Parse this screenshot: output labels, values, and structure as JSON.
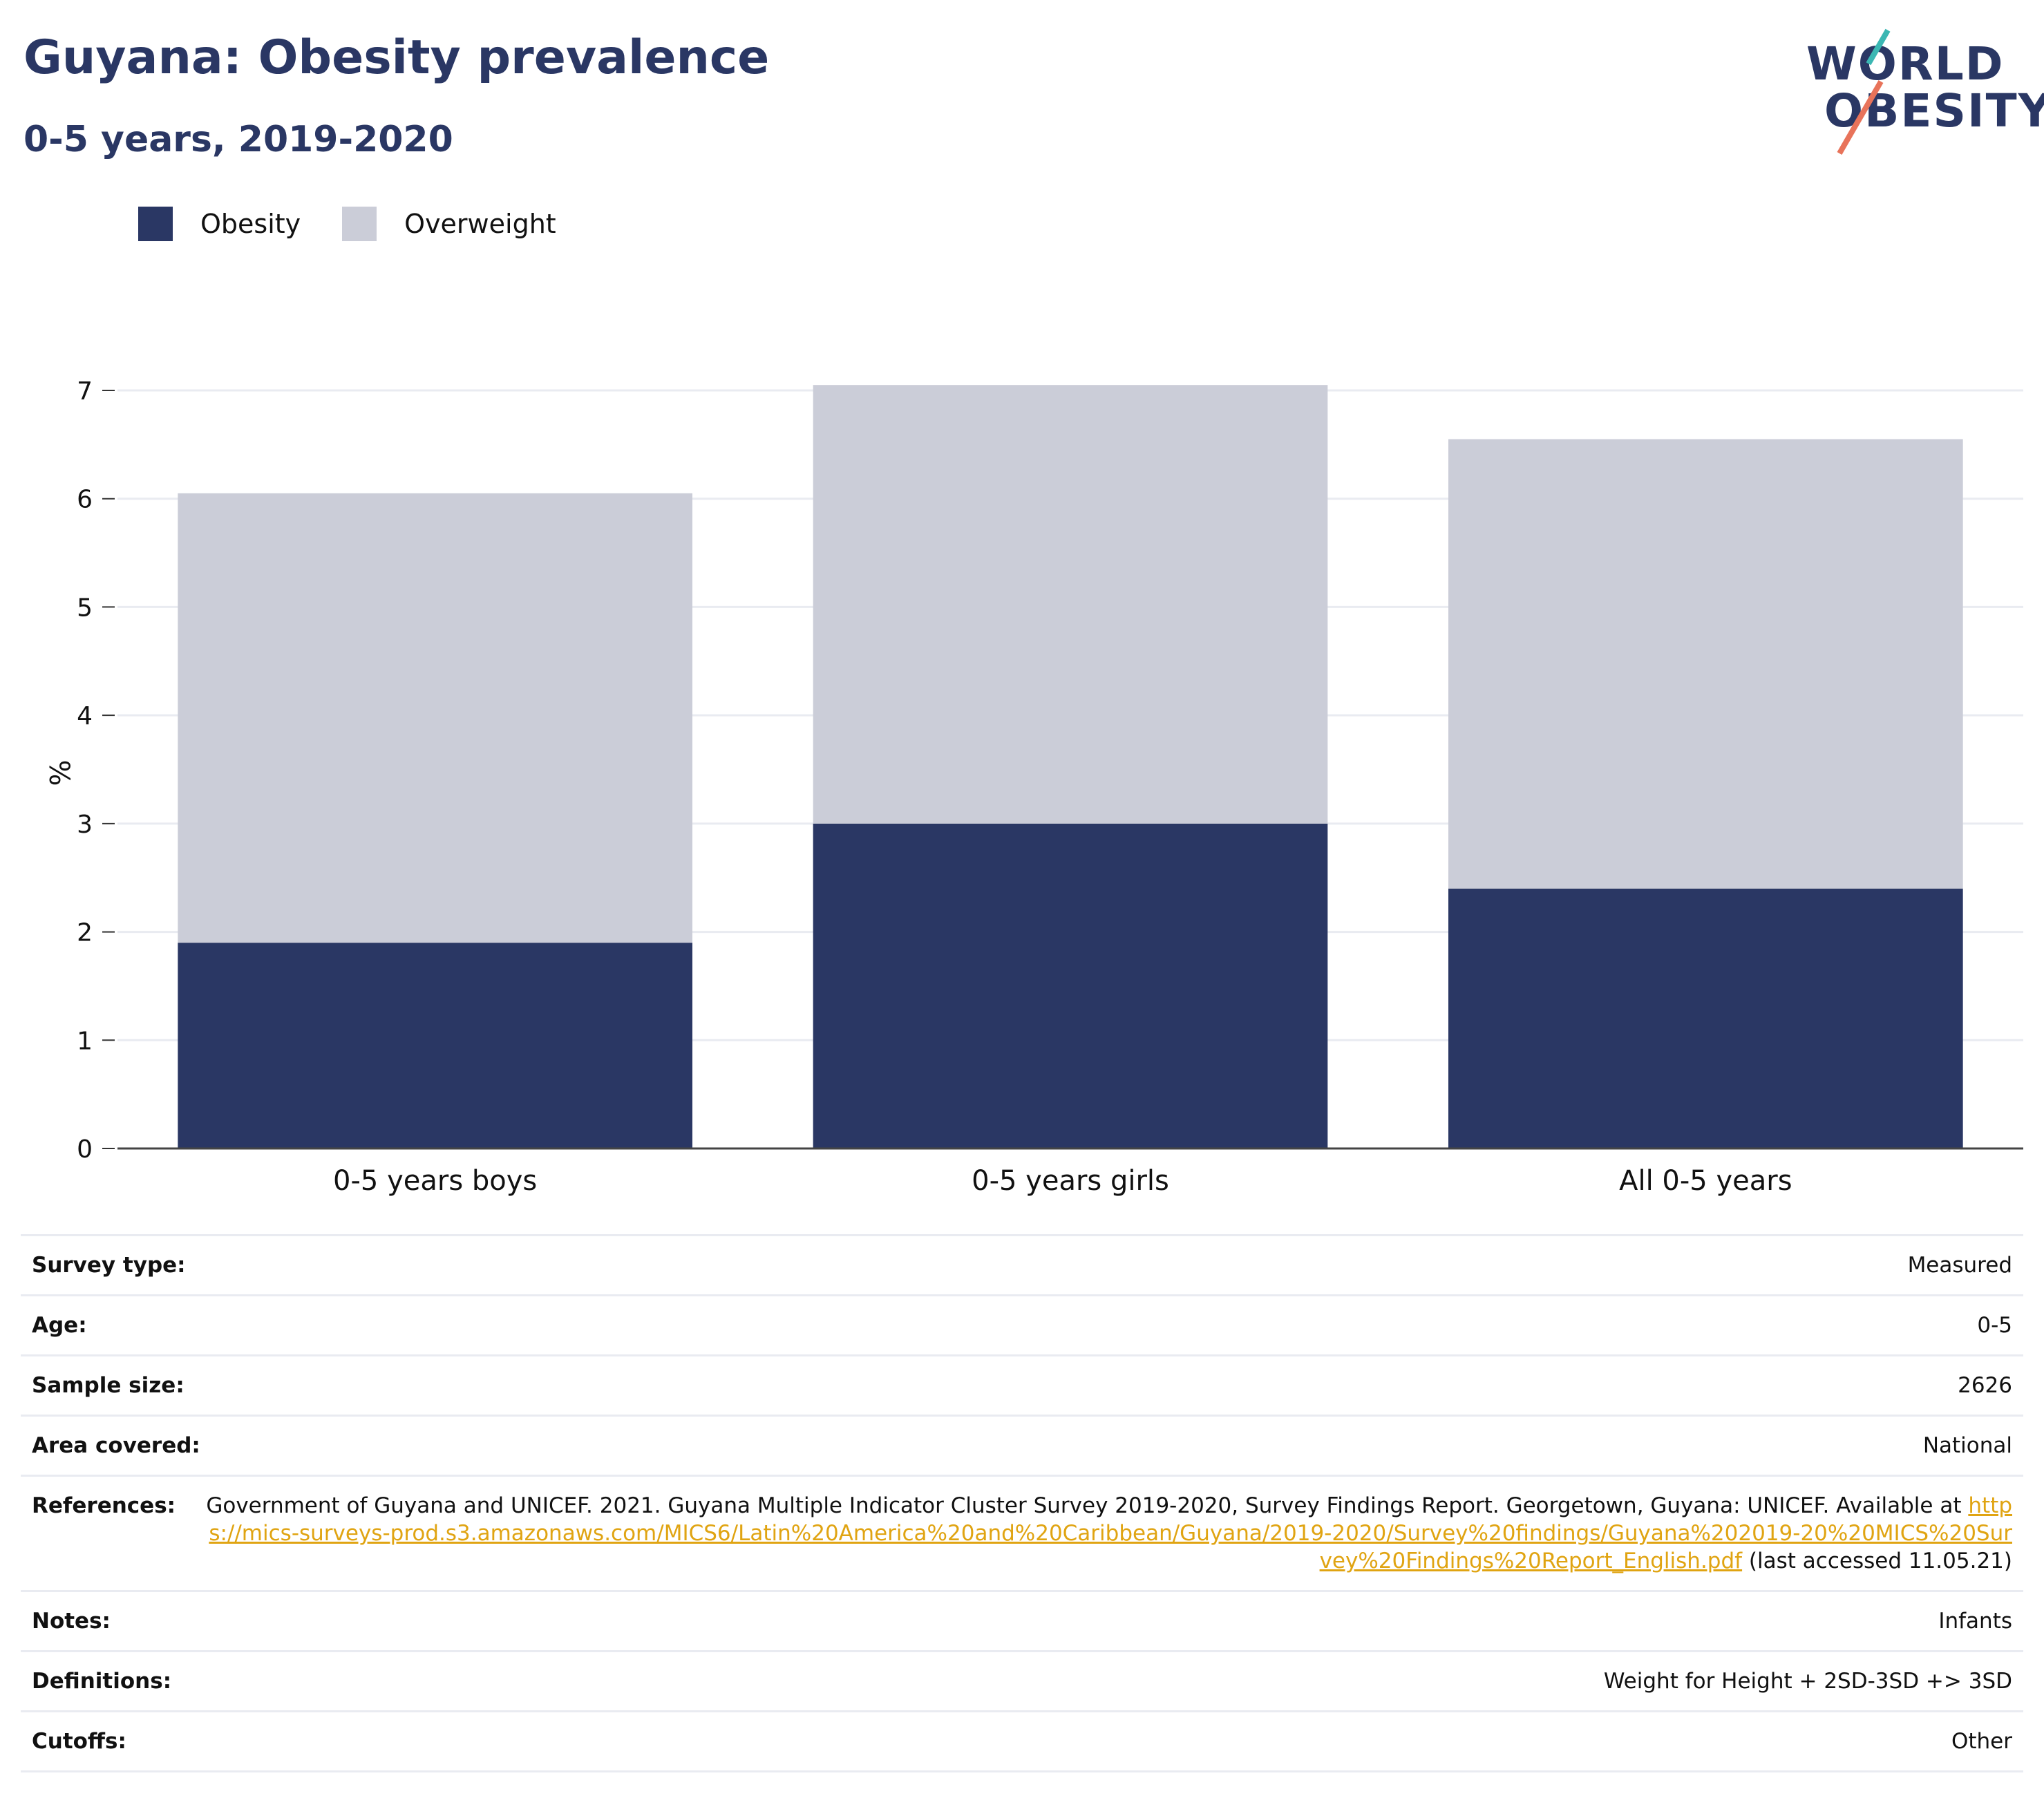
{
  "header": {
    "title": "Guyana: Obesity prevalence",
    "subtitle": "0-5 years, 2019-2020"
  },
  "logo": {
    "line1": "WORLD",
    "line2": "OBESITY",
    "colors": {
      "text": "#2a3764",
      "teal": "#3bb7b3",
      "coral": "#e8735a"
    }
  },
  "legend": [
    {
      "label": "Obesity",
      "color": "#2a3764"
    },
    {
      "label": "Overweight",
      "color": "#cbcdd8"
    }
  ],
  "chart_data": {
    "type": "bar",
    "stacked": true,
    "categories": [
      "0-5 years boys",
      "0-5 years girls",
      "All 0-5 years"
    ],
    "series": [
      {
        "name": "Obesity",
        "values": [
          1.9,
          3.0,
          2.4
        ],
        "color": "#2a3764"
      },
      {
        "name": "Overweight",
        "values": [
          4.15,
          4.05,
          4.15
        ],
        "color": "#cbcdd8"
      }
    ],
    "ylabel": "%",
    "ylim": [
      0,
      7
    ],
    "yticks": [
      0,
      1,
      2,
      3,
      4,
      5,
      6,
      7
    ],
    "grid": true,
    "legend_position": "top-left"
  },
  "info": {
    "rows": [
      {
        "key": "Survey type:",
        "value": "Measured"
      },
      {
        "key": "Age:",
        "value": "0-5"
      },
      {
        "key": "Sample size:",
        "value": "2626"
      },
      {
        "key": "Area covered:",
        "value": "National"
      }
    ],
    "references": {
      "key": "References:",
      "text_before": "Government of Guyana and UNICEF. 2021. Guyana Multiple Indicator Cluster Survey 2019-2020, Survey Findings Report. Georgetown, Guyana: UNICEF. Available at ",
      "link": "https://mics-surveys-prod.s3.amazonaws.com/MICS6/Latin%20America%20and%20Caribbean/Guyana/2019-2020/Survey%20findings/Guyana%202019-20%20MICS%20Survey%20Findings%20Report_English.pdf",
      "text_after": " (last accessed 11.05.21)"
    },
    "rows_after": [
      {
        "key": "Notes:",
        "value": "Infants"
      },
      {
        "key": "Definitions:",
        "value": "Weight for Height + 2SD-3SD +> 3SD"
      },
      {
        "key": "Cutoffs:",
        "value": "Other"
      }
    ]
  }
}
